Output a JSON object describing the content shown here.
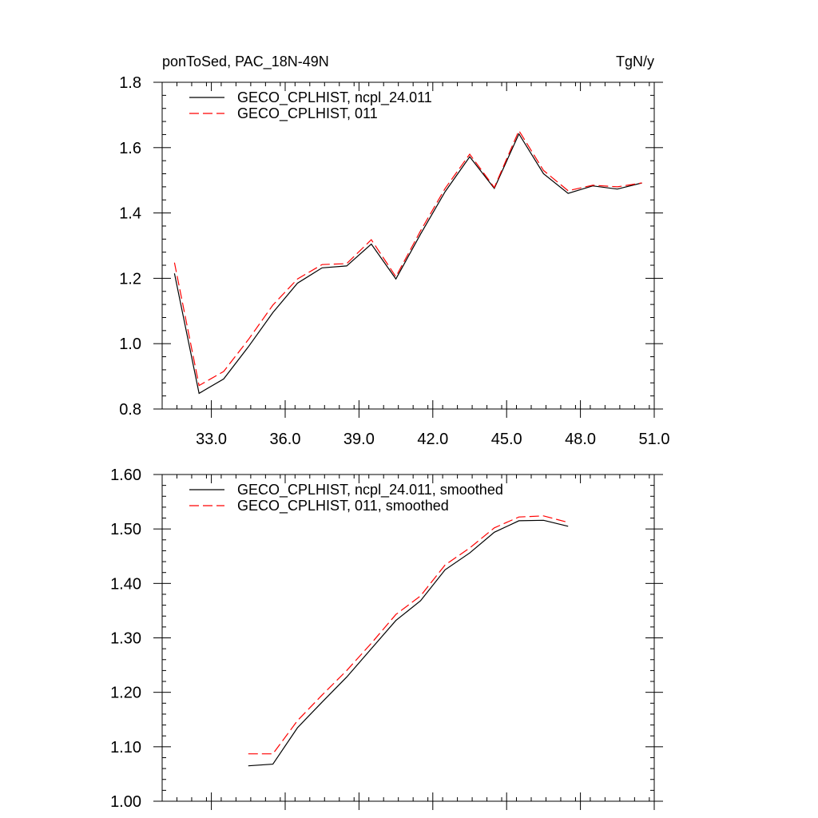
{
  "chart_data": [
    {
      "type": "line",
      "title_left": "ponToSed, PAC_18N-49N",
      "title_right": "TgN/y",
      "xlim": [
        31.0,
        51.0
      ],
      "ylim": [
        0.8,
        1.8
      ],
      "xticks": [
        33.0,
        36.0,
        39.0,
        42.0,
        45.0,
        48.0,
        51.0
      ],
      "xtick_labels": [
        "33.0",
        "36.0",
        "39.0",
        "42.0",
        "45.0",
        "48.0",
        "51.0"
      ],
      "yticks": [
        0.8,
        1.0,
        1.2,
        1.4,
        1.6,
        1.8
      ],
      "ytick_labels": [
        "0.8",
        "1.0",
        "1.2",
        "1.4",
        "1.6",
        "1.8"
      ],
      "legend_position": "top-left",
      "x": [
        31.5,
        32.5,
        33.5,
        34.5,
        35.5,
        36.5,
        37.5,
        38.5,
        39.5,
        40.5,
        41.5,
        42.5,
        43.5,
        44.5,
        45.5,
        46.5,
        47.5,
        48.5,
        49.5,
        50.5
      ],
      "series": [
        {
          "name": "GECO_CPLHIST, ncpl_24.011",
          "color": "#000000",
          "dash": "solid",
          "values": [
            1.215,
            0.848,
            0.892,
            0.99,
            1.095,
            1.185,
            1.232,
            1.238,
            1.305,
            1.198,
            1.335,
            1.465,
            1.572,
            1.475,
            1.642,
            1.52,
            1.46,
            1.483,
            1.473,
            1.492
          ]
        },
        {
          "name": "GECO_CPLHIST, 011",
          "color": "#ff0000",
          "dash": "dashed",
          "values": [
            1.248,
            0.872,
            0.915,
            1.012,
            1.118,
            1.198,
            1.242,
            1.245,
            1.318,
            1.205,
            1.345,
            1.475,
            1.58,
            1.478,
            1.652,
            1.53,
            1.468,
            1.485,
            1.48,
            1.492
          ]
        }
      ]
    },
    {
      "type": "line",
      "xlim": [
        31.0,
        51.0
      ],
      "ylim": [
        1.0,
        1.6
      ],
      "xticks": [
        33.0,
        36.0,
        39.0,
        42.0,
        45.0,
        48.0,
        51.0
      ],
      "yticks": [
        1.0,
        1.1,
        1.2,
        1.3,
        1.4,
        1.5,
        1.6
      ],
      "ytick_labels": [
        "1.00",
        "1.10",
        "1.20",
        "1.30",
        "1.40",
        "1.50",
        "1.60"
      ],
      "legend_position": "top-left",
      "x": [
        34.5,
        35.5,
        36.5,
        37.5,
        38.5,
        39.5,
        40.5,
        41.5,
        42.5,
        43.5,
        44.5,
        45.5,
        46.5,
        47.5
      ],
      "series": [
        {
          "name": "GECO_CPLHIST, ncpl_24.011, smoothed",
          "color": "#000000",
          "dash": "solid",
          "values": [
            1.065,
            1.068,
            1.135,
            1.182,
            1.228,
            1.28,
            1.332,
            1.368,
            1.425,
            1.456,
            1.494,
            1.515,
            1.516,
            1.505
          ]
        },
        {
          "name": "GECO_CPLHIST, 011, smoothed",
          "color": "#ff0000",
          "dash": "dashed",
          "values": [
            1.087,
            1.087,
            1.148,
            1.195,
            1.24,
            1.29,
            1.343,
            1.377,
            1.434,
            1.465,
            1.502,
            1.522,
            1.524,
            1.512
          ]
        }
      ]
    }
  ]
}
